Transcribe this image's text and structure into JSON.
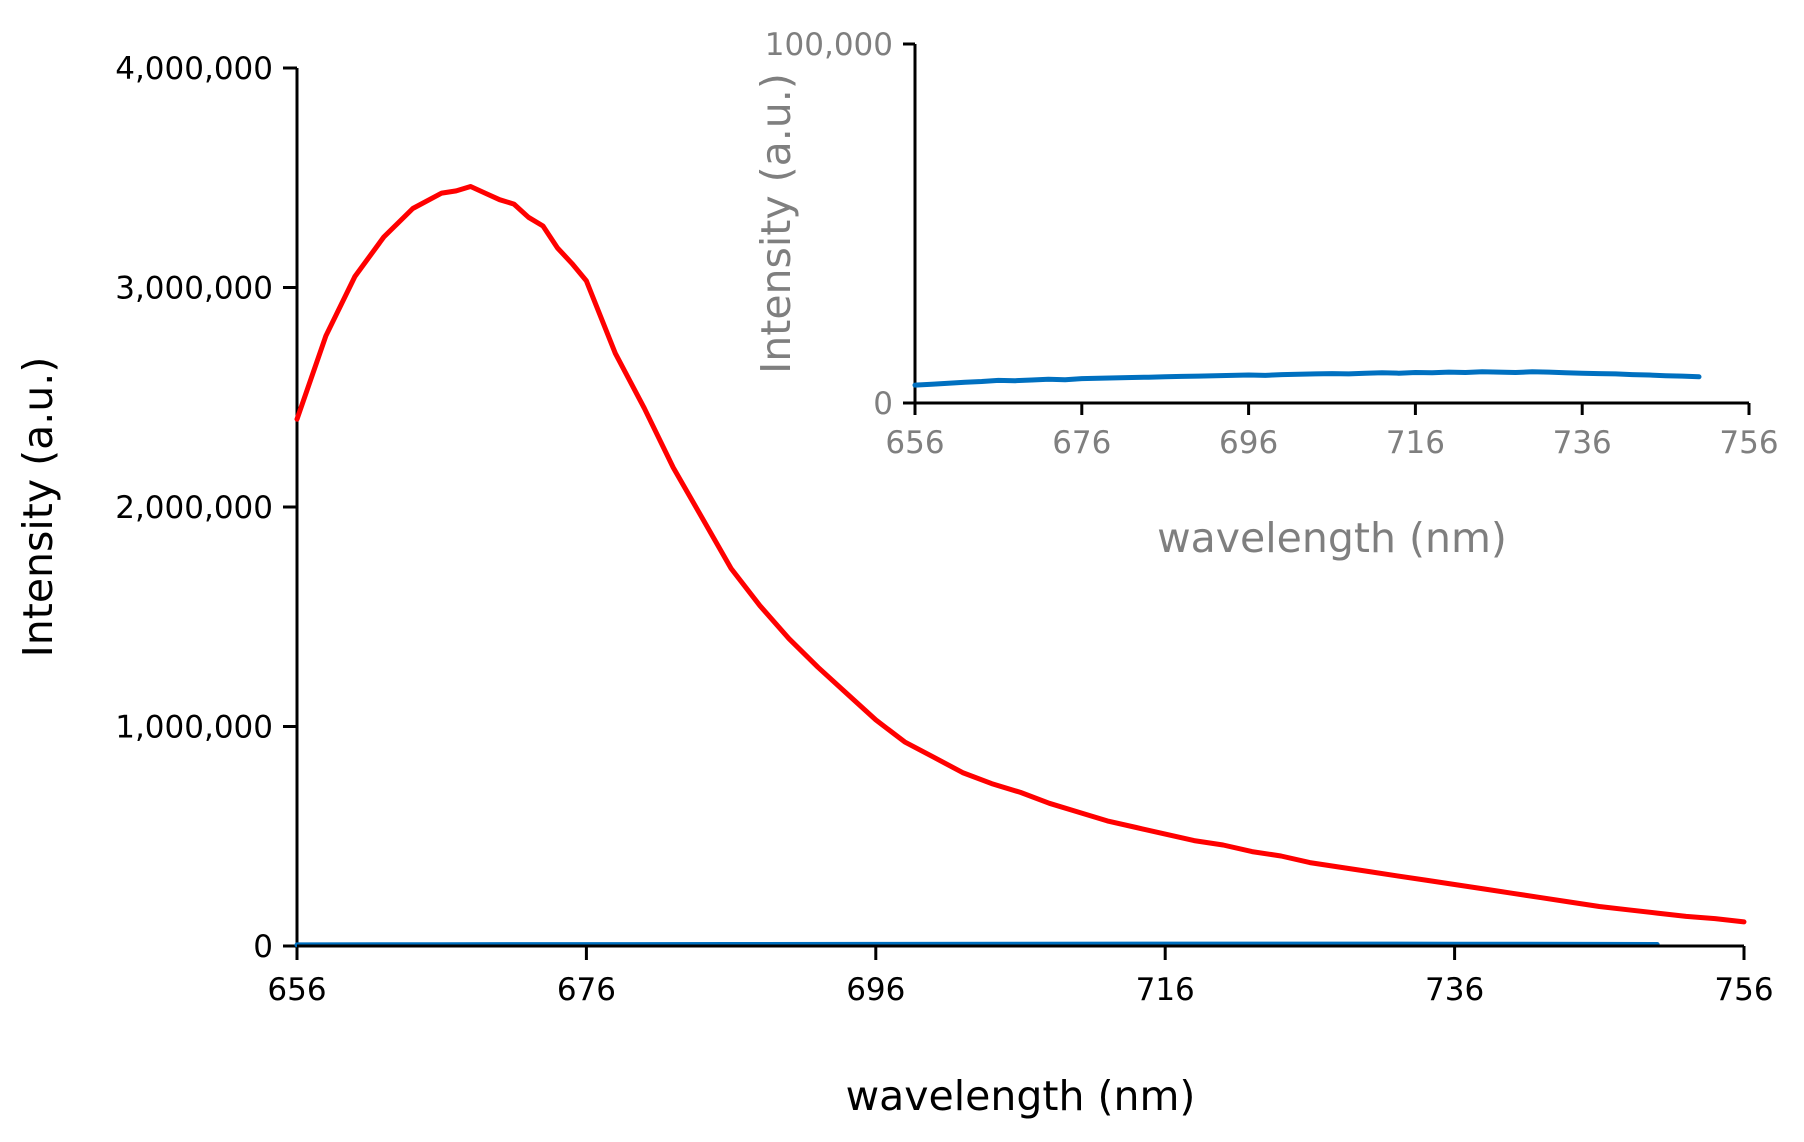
{
  "chart_data": [
    {
      "id": "main",
      "type": "line",
      "title": "",
      "xlabel": "wavelength (nm)",
      "ylabel": "Intensity (a.u.)",
      "xlim": [
        656,
        756
      ],
      "ylim": [
        0,
        4000000
      ],
      "xticks": [
        656,
        676,
        696,
        716,
        736,
        756
      ],
      "yticks": [
        0,
        1000000,
        2000000,
        3000000,
        4000000
      ],
      "xtick_labels": [
        "656",
        "676",
        "696",
        "716",
        "736",
        "756"
      ],
      "ytick_labels": [
        "0",
        "1,000,000",
        "2,000,000",
        "3,000,000",
        "4,000,000"
      ],
      "grid": false,
      "legend": "none",
      "series": [
        {
          "name": "red",
          "color": "#ff0000",
          "x": [
            656,
            658,
            660,
            662,
            664,
            666,
            667,
            668,
            669,
            670,
            671,
            672,
            673,
            674,
            675,
            676,
            678,
            680,
            682,
            684,
            686,
            688,
            690,
            692,
            694,
            696,
            698,
            700,
            702,
            704,
            706,
            708,
            710,
            712,
            714,
            716,
            718,
            720,
            722,
            724,
            726,
            728,
            730,
            732,
            734,
            736,
            738,
            740,
            742,
            744,
            746,
            748,
            750,
            752,
            754,
            756
          ],
          "values": [
            2400000,
            2780000,
            3050000,
            3230000,
            3360000,
            3430000,
            3440000,
            3460000,
            3430000,
            3400000,
            3380000,
            3320000,
            3280000,
            3180000,
            3110000,
            3030000,
            2700000,
            2450000,
            2180000,
            1950000,
            1720000,
            1550000,
            1400000,
            1270000,
            1150000,
            1030000,
            930000,
            860000,
            790000,
            740000,
            700000,
            650000,
            610000,
            570000,
            540000,
            510000,
            480000,
            460000,
            430000,
            410000,
            380000,
            360000,
            340000,
            320000,
            300000,
            280000,
            260000,
            240000,
            220000,
            200000,
            180000,
            165000,
            150000,
            135000,
            125000,
            110000
          ]
        },
        {
          "name": "blue",
          "color": "#0070c0",
          "x": [
            656,
            666,
            676,
            686,
            696,
            706,
            716,
            726,
            736,
            746,
            750
          ],
          "values": [
            5000,
            6000,
            6500,
            7000,
            7500,
            8000,
            8500,
            8500,
            8000,
            7500,
            7000
          ]
        }
      ]
    },
    {
      "id": "inset",
      "type": "line",
      "title": "",
      "xlabel": "wavelength (nm)",
      "ylabel": "Intensity (a.u.)",
      "xlim": [
        656,
        756
      ],
      "ylim": [
        0,
        100000
      ],
      "xticks": [
        656,
        676,
        696,
        716,
        736,
        756
      ],
      "yticks": [
        0,
        100000
      ],
      "xtick_labels": [
        "656",
        "676",
        "696",
        "716",
        "736",
        "756"
      ],
      "ytick_labels": [
        "0",
        "100,000"
      ],
      "grid": false,
      "legend": "none",
      "series": [
        {
          "name": "blue",
          "color": "#0070c0",
          "x": [
            656,
            658,
            660,
            662,
            664,
            666,
            668,
            670,
            672,
            674,
            676,
            678,
            680,
            682,
            684,
            686,
            688,
            690,
            692,
            694,
            696,
            698,
            700,
            702,
            704,
            706,
            708,
            710,
            712,
            714,
            716,
            718,
            720,
            722,
            724,
            726,
            728,
            730,
            732,
            734,
            736,
            738,
            740,
            742,
            744,
            746,
            748,
            750
          ],
          "values": [
            5000,
            5200,
            5500,
            5800,
            6000,
            6300,
            6200,
            6400,
            6600,
            6500,
            6800,
            6900,
            7000,
            7100,
            7200,
            7300,
            7400,
            7500,
            7600,
            7700,
            7800,
            7700,
            7900,
            8000,
            8100,
            8200,
            8100,
            8300,
            8400,
            8300,
            8500,
            8400,
            8600,
            8500,
            8700,
            8600,
            8500,
            8700,
            8600,
            8400,
            8300,
            8200,
            8100,
            7900,
            7800,
            7600,
            7500,
            7300
          ]
        }
      ]
    }
  ]
}
